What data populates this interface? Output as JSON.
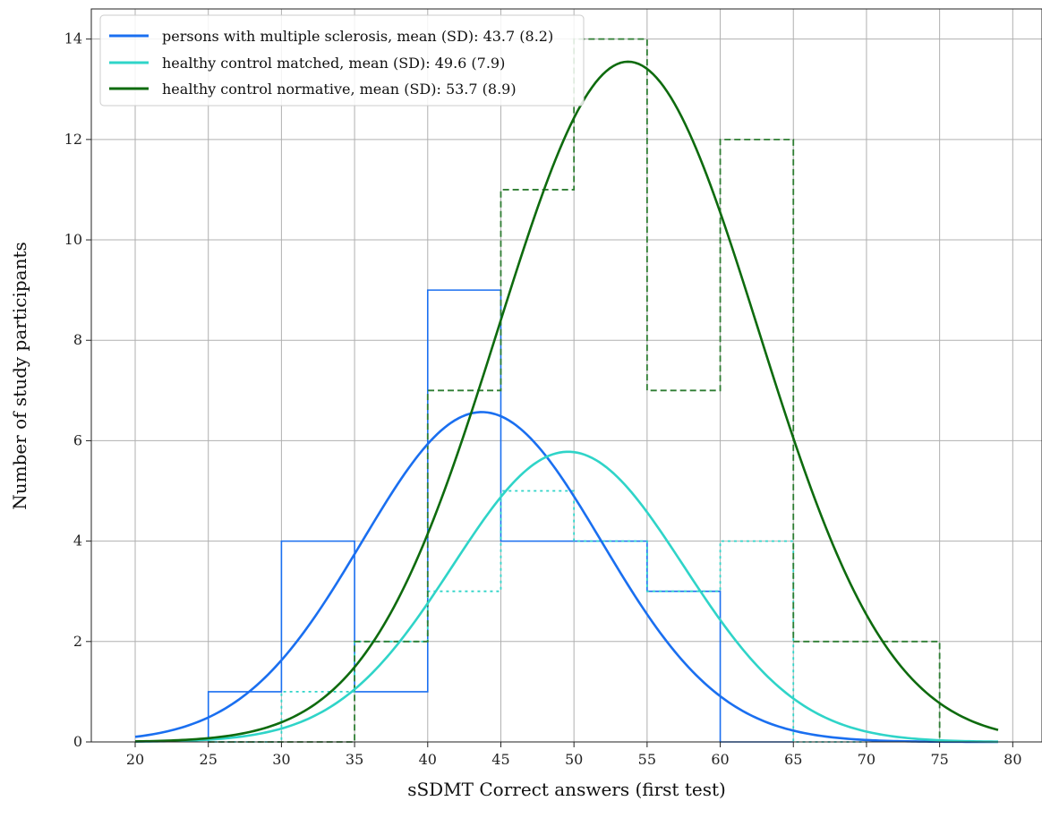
{
  "chart_data": {
    "type": "line",
    "title": "",
    "xlabel": "sSDMT Correct answers (first test)",
    "ylabel": "Number of study participants",
    "xlim": [
      17,
      82
    ],
    "ylim": [
      0,
      14.6
    ],
    "x_ticks": [
      20,
      25,
      30,
      35,
      40,
      45,
      50,
      55,
      60,
      65,
      70,
      75,
      80
    ],
    "y_ticks": [
      0,
      2,
      4,
      6,
      8,
      10,
      12,
      14
    ],
    "grid": true,
    "legend_position": "top-left",
    "histograms": [
      {
        "group": "ms",
        "style": "solid",
        "color": "#1a6ff0",
        "bins": [
          {
            "x0": 25,
            "x1": 30,
            "count": 1
          },
          {
            "x0": 30,
            "x1": 35,
            "count": 4
          },
          {
            "x0": 35,
            "x1": 40,
            "count": 1
          },
          {
            "x0": 40,
            "x1": 45,
            "count": 9
          },
          {
            "x0": 45,
            "x1": 55,
            "count": 4
          },
          {
            "x0": 55,
            "x1": 60,
            "count": 3
          },
          {
            "x0": 60,
            "x1": 65,
            "count": 0
          }
        ]
      },
      {
        "group": "matched",
        "style": "dotted",
        "color": "#2fd4c8",
        "bins": [
          {
            "x0": 25,
            "x1": 30,
            "count": 0
          },
          {
            "x0": 30,
            "x1": 35,
            "count": 1
          },
          {
            "x0": 35,
            "x1": 40,
            "count": 2
          },
          {
            "x0": 40,
            "x1": 45,
            "count": 3
          },
          {
            "x0": 45,
            "x1": 50,
            "count": 5
          },
          {
            "x0": 50,
            "x1": 55,
            "count": 4
          },
          {
            "x0": 55,
            "x1": 60,
            "count": 3
          },
          {
            "x0": 60,
            "x1": 65,
            "count": 4
          },
          {
            "x0": 65,
            "x1": 70,
            "count": 0
          }
        ]
      },
      {
        "group": "normative",
        "style": "dashed",
        "color": "#2e7d32",
        "bins": [
          {
            "x0": 25,
            "x1": 35,
            "count": 0
          },
          {
            "x0": 35,
            "x1": 40,
            "count": 2
          },
          {
            "x0": 40,
            "x1": 45,
            "count": 7
          },
          {
            "x0": 45,
            "x1": 50,
            "count": 11
          },
          {
            "x0": 50,
            "x1": 55,
            "count": 14
          },
          {
            "x0": 55,
            "x1": 60,
            "count": 7
          },
          {
            "x0": 60,
            "x1": 65,
            "count": 12
          },
          {
            "x0": 65,
            "x1": 75,
            "count": 2
          }
        ]
      }
    ],
    "series": [
      {
        "name": "persons with multiple sclerosis, mean (SD): 43.7 (8.2)",
        "color": "#1a6ff0",
        "mean": 43.7,
        "sd": 8.2,
        "peak": 6.57,
        "x_range": [
          20,
          79
        ]
      },
      {
        "name": "healthy control matched, mean (SD): 49.6 (7.9)",
        "color": "#2fd4c8",
        "mean": 49.6,
        "sd": 7.9,
        "peak": 5.78,
        "x_range": [
          20,
          79
        ]
      },
      {
        "name": "healthy control normative, mean (SD): 53.7 (8.9)",
        "color": "#0e6b0e",
        "mean": 53.7,
        "sd": 8.9,
        "peak": 13.55,
        "x_range": [
          20,
          79
        ]
      }
    ]
  }
}
